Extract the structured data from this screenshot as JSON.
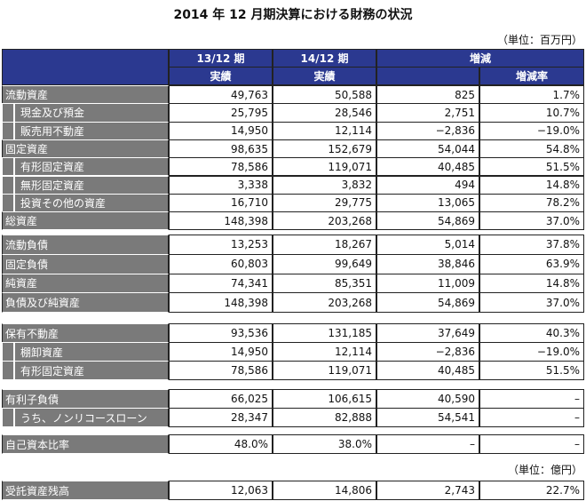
{
  "title": "2014 年 12 月期決算における財務の状況",
  "units": [
    "（単位：百万円）",
    "（単位：億円）"
  ],
  "header": {
    "periods": [
      "13/12 期",
      "14/12 期"
    ],
    "actual": [
      "実績",
      "実績"
    ],
    "change": "増減",
    "rate": "増減率"
  },
  "groups": [
    {
      "rows": [
        {
          "label": "流動資産",
          "values": [
            "49,763",
            "50,588",
            "825",
            "1.7%"
          ]
        },
        {
          "label": "現金及び預金",
          "indent": true,
          "values": [
            "25,795",
            "28,546",
            "2,751",
            "10.7%"
          ]
        },
        {
          "label": "販売用不動産",
          "indent": true,
          "values": [
            "14,950",
            "12,114",
            "−2,836",
            "−19.0%"
          ]
        },
        {
          "label": "固定資産",
          "values": [
            "98,635",
            "152,679",
            "54,044",
            "54.8%"
          ]
        },
        {
          "label": "有形固定資産",
          "indent": true,
          "values": [
            "78,586",
            "119,071",
            "40,485",
            "51.5%"
          ]
        },
        {
          "label": "無形固定資産",
          "indent": true,
          "values": [
            "3,338",
            "3,832",
            "494",
            "14.8%"
          ]
        },
        {
          "label": "投資その他の資産",
          "indent": true,
          "values": [
            "16,710",
            "29,775",
            "13,065",
            "78.2%"
          ]
        },
        {
          "label": "総資産",
          "values": [
            "148,398",
            "203,268",
            "54,869",
            "37.0%"
          ]
        }
      ]
    },
    {
      "rows": [
        {
          "label": "流動負債",
          "values": [
            "13,253",
            "18,267",
            "5,014",
            "37.8%"
          ]
        },
        {
          "label": "固定負債",
          "values": [
            "60,803",
            "99,649",
            "38,846",
            "63.9%"
          ]
        },
        {
          "label": "純資産",
          "values": [
            "74,341",
            "85,351",
            "11,009",
            "14.8%"
          ]
        },
        {
          "label": "負債及び純資産",
          "values": [
            "148,398",
            "203,268",
            "54,869",
            "37.0%"
          ]
        }
      ]
    },
    {
      "rows": [
        {
          "label": "保有不動産",
          "values": [
            "93,536",
            "131,185",
            "37,649",
            "40.3%"
          ]
        },
        {
          "label": "棚卸資産",
          "indent": true,
          "values": [
            "14,950",
            "12,114",
            "−2,836",
            "−19.0%"
          ]
        },
        {
          "label": "有形固定資産",
          "indent": true,
          "values": [
            "78,586",
            "119,071",
            "40,485",
            "51.5%"
          ]
        }
      ]
    },
    {
      "rows": [
        {
          "label": "有利子負債",
          "values": [
            "66,025",
            "106,615",
            "40,590",
            "–"
          ]
        },
        {
          "label": "うち、ノンリコースローン",
          "indent": true,
          "values": [
            "28,347",
            "82,888",
            "54,541",
            "–"
          ]
        }
      ]
    },
    {
      "rows": [
        {
          "label": "自己資本比率",
          "values": [
            "48.0%",
            "38.0%",
            "–",
            "–"
          ]
        }
      ]
    },
    {
      "rows": [
        {
          "label": "受託資産残高",
          "values": [
            "12,063",
            "14,806",
            "2,743",
            "22.7%"
          ]
        }
      ]
    }
  ]
}
